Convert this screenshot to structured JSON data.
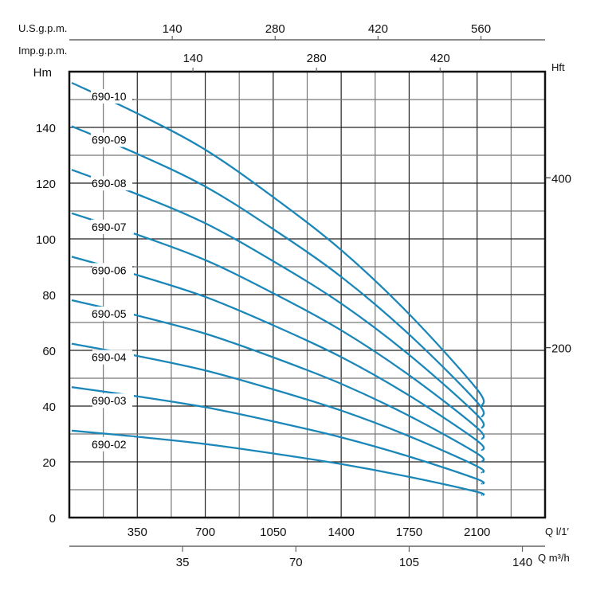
{
  "chart_data": {
    "type": "line",
    "y_axis_left": {
      "label": "Hm",
      "range": [
        0,
        160
      ],
      "ticks": [
        0,
        20,
        40,
        60,
        80,
        100,
        120,
        140
      ]
    },
    "y_axis_right": {
      "label": "Hft",
      "ticks": [
        200,
        400
      ]
    },
    "x_axis_bottom_primary": {
      "label": "Q l/1′",
      "range": [
        0,
        2450
      ],
      "ticks": [
        350,
        700,
        1050,
        1400,
        1750,
        2100
      ]
    },
    "x_axis_bottom_secondary": {
      "label": "Q m³/h",
      "ticks": [
        35,
        70,
        105,
        140
      ]
    },
    "x_axis_top_us": {
      "label": "U.S.g.p.m.",
      "ticks": [
        140,
        280,
        420,
        560
      ]
    },
    "x_axis_top_imp": {
      "label": "Imp.g.p.m.",
      "ticks": [
        140,
        280,
        420
      ]
    },
    "grid": true,
    "line_color": "#1b87b9",
    "x": [
      0,
      350,
      700,
      1050,
      1400,
      1750,
      2100,
      2125
    ],
    "series": [
      {
        "name": "690-10",
        "values": [
          156,
          145,
          132,
          115,
          96,
          73,
          46,
          40
        ]
      },
      {
        "name": "690-09",
        "values": [
          140.4,
          130.5,
          118.8,
          103.5,
          86.4,
          65.7,
          41.4,
          36
        ]
      },
      {
        "name": "690-08",
        "values": [
          124.8,
          116,
          105.6,
          92,
          76.8,
          58.4,
          36.8,
          32
        ]
      },
      {
        "name": "690-07",
        "values": [
          109.2,
          101.5,
          92.4,
          80.5,
          67.2,
          51.1,
          32.2,
          28
        ]
      },
      {
        "name": "690-06",
        "values": [
          93.6,
          87,
          79.2,
          69,
          57.6,
          43.8,
          27.6,
          24
        ]
      },
      {
        "name": "690-05",
        "values": [
          78,
          72.5,
          66,
          57.5,
          48,
          36.5,
          23,
          20
        ]
      },
      {
        "name": "690-04",
        "values": [
          62.4,
          58,
          52.8,
          46,
          38.4,
          29.2,
          18.4,
          16
        ]
      },
      {
        "name": "690-03",
        "values": [
          46.8,
          43.5,
          39.6,
          34.5,
          28.8,
          21.9,
          13.8,
          12
        ]
      },
      {
        "name": "690-02",
        "values": [
          31.2,
          29,
          26.4,
          23,
          19.2,
          14.6,
          9.2,
          8
        ]
      }
    ]
  }
}
